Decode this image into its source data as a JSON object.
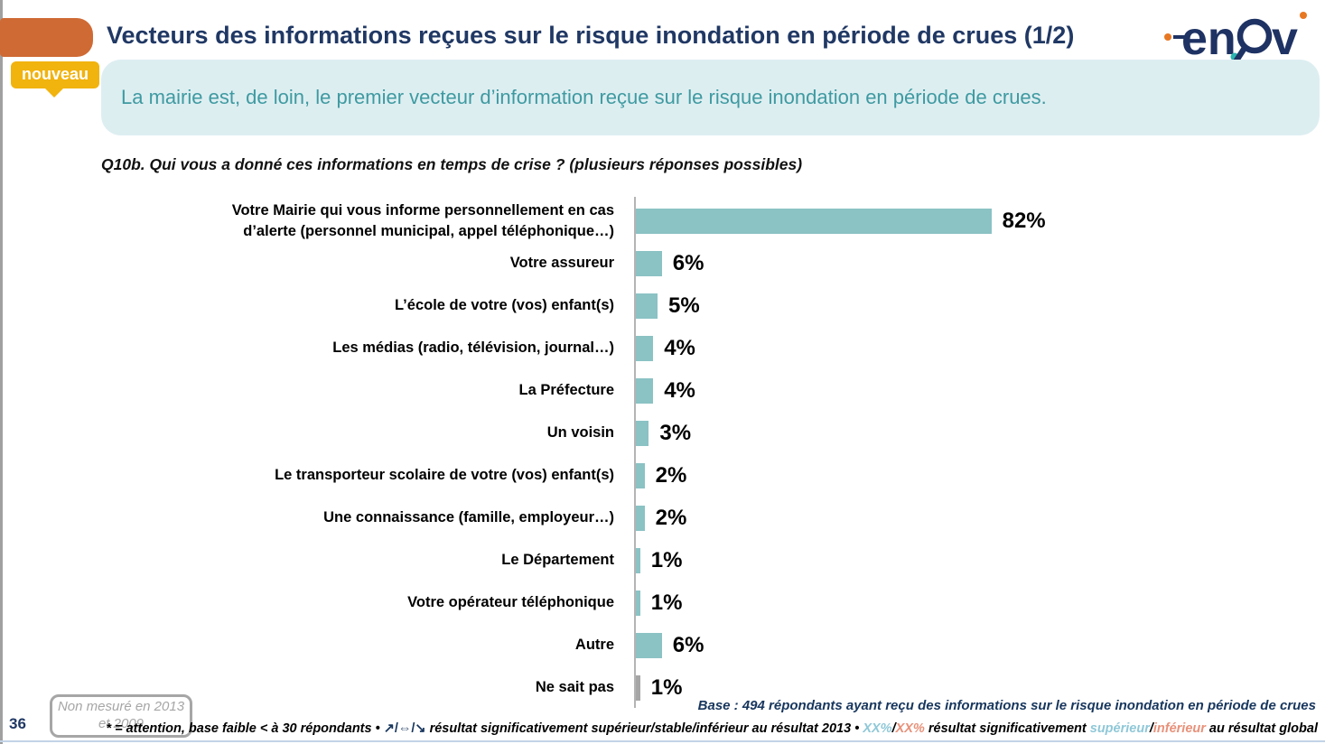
{
  "slide": {
    "title": "Vecteurs des informations reçues sur le risque inondation en période de crues (1/2)",
    "badge": "nouveau",
    "key_message": "La mairie est, de loin, le premier vecteur d’information reçue sur le risque inondation en période de crues.",
    "question": "Q10b. Qui vous a donné ces informations en temps de crise ? (plusieurs réponses possibles)",
    "page_number": "36",
    "note_box": "Non mesuré en 2013 et 2009",
    "base_text": "Base : 494 répondants ayant reçu des informations sur le risque inondation en période de crues"
  },
  "footnote": {
    "part1": "* = attention, base faible < à 30 répondants • ",
    "arrows": "↗/⇔/↘",
    "part2": " résultat significativement supérieur/stable/inférieur au résultat 2013 • ",
    "xx_sup": "XX%",
    "slash1": "/",
    "xx_inf": "XX%",
    "part3": " résultat significativement ",
    "sup_word": "supérieur",
    "slash2": "/",
    "inf_word": "inférieur",
    "part4": " au résultat global"
  },
  "chart_data": {
    "type": "bar",
    "orientation": "horizontal",
    "title": "Q10b. Qui vous a donné ces informations en temps de crise ? (plusieurs réponses possibles)",
    "xlim": [
      0,
      100
    ],
    "grid": false,
    "legend": "none",
    "categories": [
      "Votre Mairie qui vous informe personnellement en cas d’alerte (personnel municipal, appel téléphonique…)",
      "Votre assureur",
      "L’école de votre (vos) enfant(s)",
      "Les médias (radio, télévision, journal…)",
      "La Préfecture",
      "Un voisin",
      "Le transporteur scolaire de votre (vos) enfant(s)",
      "Une connaissance (famille, employeur…)",
      "Le Département",
      "Votre opérateur téléphonique",
      "Autre",
      "Ne sait pas"
    ],
    "values": [
      82,
      6,
      5,
      4,
      4,
      3,
      2,
      2,
      1,
      1,
      6,
      1
    ],
    "value_labels": [
      "82%",
      "6%",
      "5%",
      "4%",
      "4%",
      "3%",
      "2%",
      "2%",
      "1%",
      "1%",
      "6%",
      "1%"
    ],
    "bar_colors": [
      "#8bc2c4",
      "#8bc2c4",
      "#8bc2c4",
      "#8bc2c4",
      "#8bc2c4",
      "#8bc2c4",
      "#8bc2c4",
      "#8bc2c4",
      "#8bc2c4",
      "#8bc2c4",
      "#8bc2c4",
      "#a6a6a6"
    ]
  },
  "colors": {
    "accent_orange": "#cf6a35",
    "badge_gold": "#f1b30e",
    "title_navy": "#203864",
    "banner_bg": "#ddeef1",
    "banner_text": "#3e9aa1",
    "bar_teal": "#8bc2c4",
    "dont_know_gray": "#a6a6a6",
    "footnote_blue": "#8fc8d8",
    "footnote_salmon": "#e8917a"
  },
  "logo": {
    "name": "enov",
    "letters_en": "en",
    "letter_v": "v"
  }
}
